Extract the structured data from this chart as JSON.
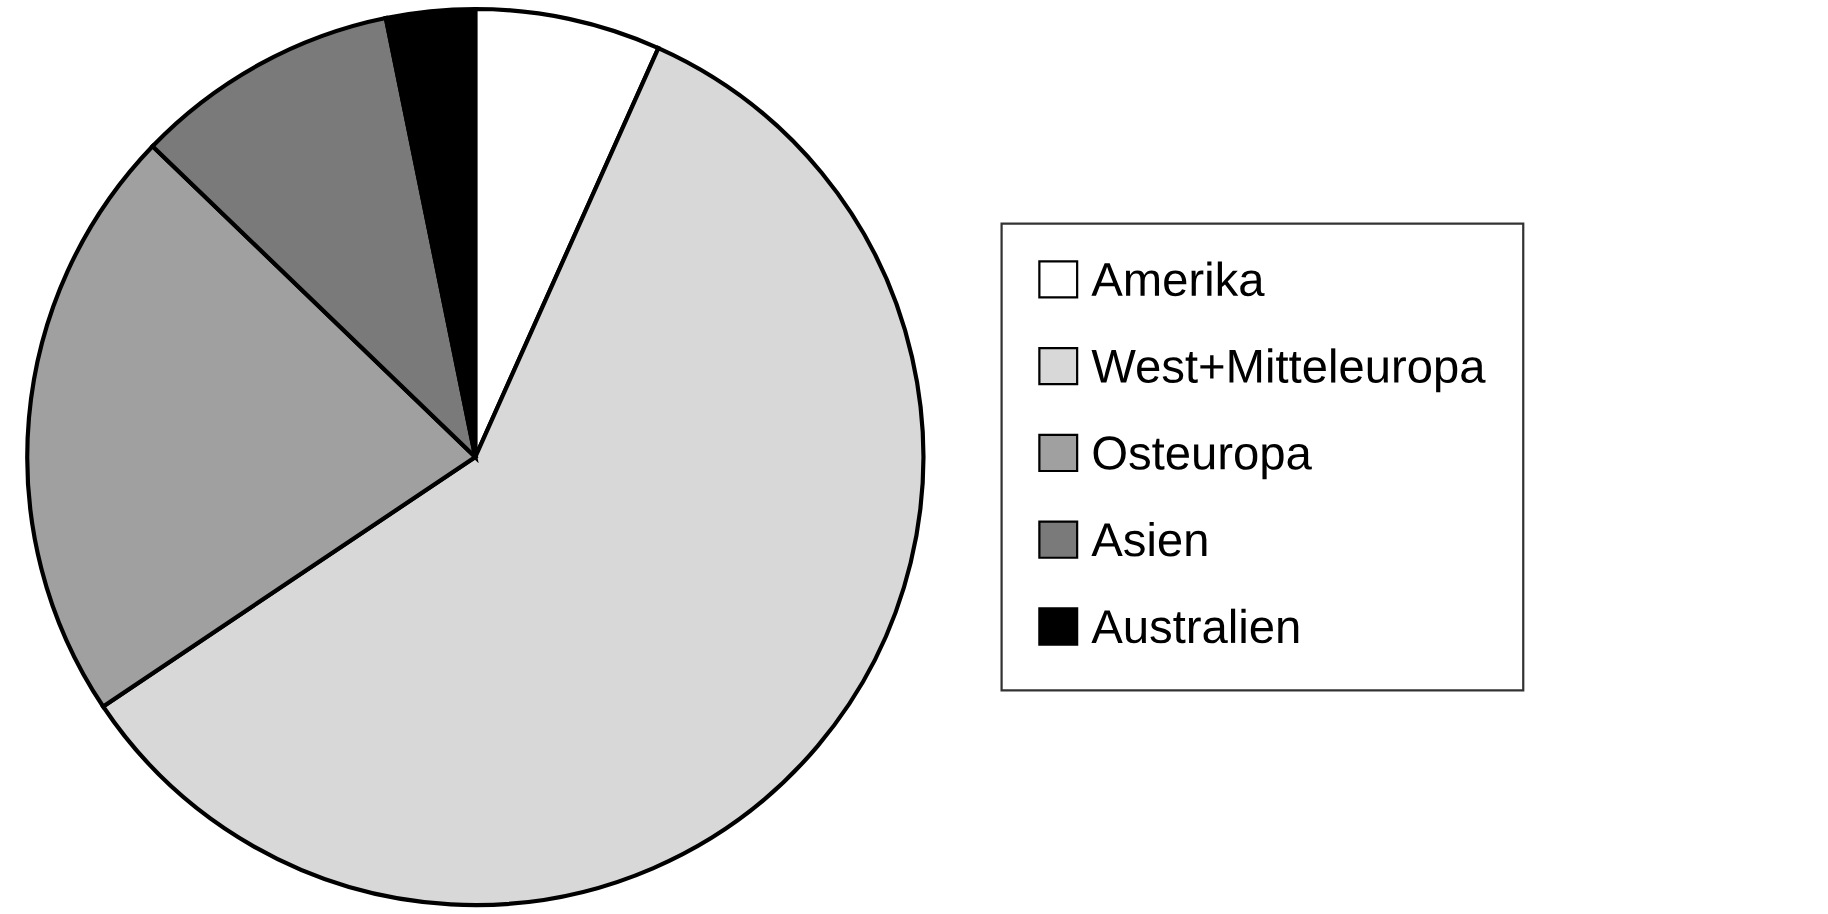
{
  "chart_data": {
    "type": "pie",
    "categories": [
      "Amerika",
      "West+Mitteleuropa",
      "Osteuropa",
      "Asien",
      "Australien"
    ],
    "values": [
      6.7,
      58.9,
      21.6,
      9.6,
      3.2
    ],
    "colors": [
      "#ffffff",
      "#d8d8d8",
      "#a0a0a0",
      "#7a7a7a",
      "#000000"
    ],
    "legend": "right"
  }
}
